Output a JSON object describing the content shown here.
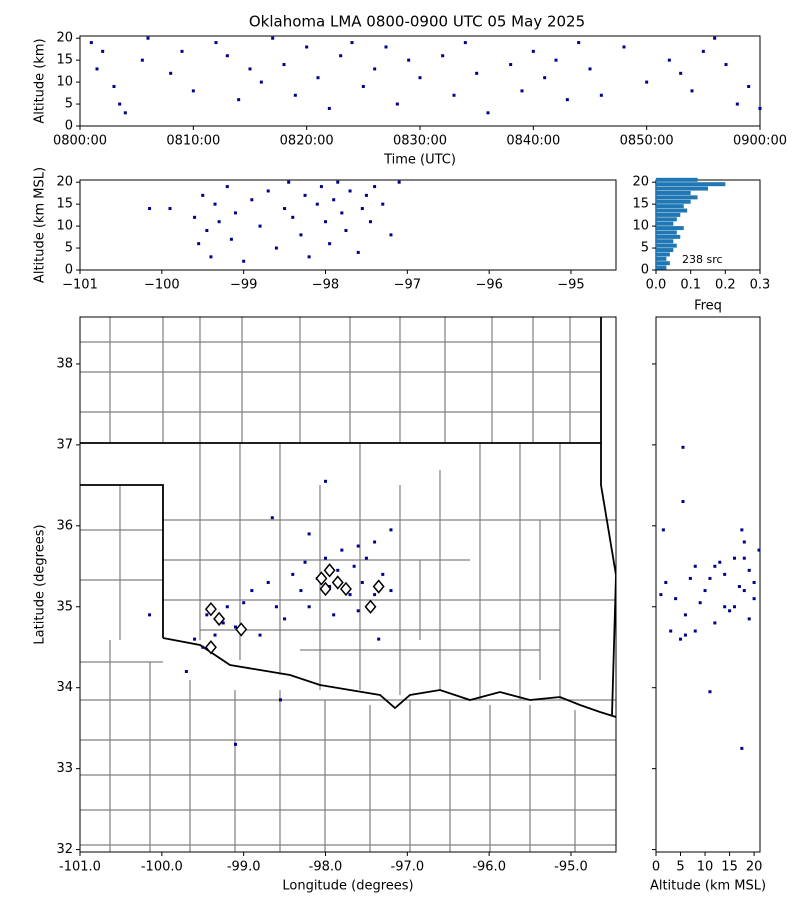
{
  "chart_data": [
    {
      "type": "scatter",
      "title": "Oklahoma LMA 0800-0900 UTC 05 May 2025",
      "xlabel": "Time (UTC)",
      "ylabel": "Altitude (km)",
      "xlim": [
        0,
        60
      ],
      "ylim": [
        0,
        20.5
      ],
      "xticks": [
        {
          "value": 0,
          "label": "0800:00"
        },
        {
          "value": 10,
          "label": "0810:00"
        },
        {
          "value": 20,
          "label": "0820:00"
        },
        {
          "value": 30,
          "label": "0830:00"
        },
        {
          "value": 40,
          "label": "0840:00"
        },
        {
          "value": 50,
          "label": "0850:00"
        },
        {
          "value": 60,
          "label": "0900:00"
        }
      ],
      "yticks": [
        0,
        5,
        10,
        15,
        20
      ],
      "series": [
        {
          "color": "#00008b",
          "marker": "square",
          "x": [
            1,
            1.5,
            2,
            3,
            3.5,
            4,
            5.5,
            6,
            8,
            9,
            10,
            12,
            13,
            14,
            15,
            16,
            17,
            18,
            19,
            20,
            21,
            22,
            23,
            24,
            25,
            26,
            27,
            28,
            29,
            30,
            32,
            33,
            34,
            35,
            36,
            38,
            39,
            40,
            41,
            42,
            43,
            44,
            45,
            46,
            48,
            50,
            52,
            53,
            54,
            55,
            56,
            57,
            58,
            59,
            60
          ],
          "values": [
            19,
            13,
            17,
            9,
            5,
            3,
            15,
            20,
            12,
            17,
            8,
            19,
            16,
            6,
            13,
            10,
            20,
            14,
            7,
            18,
            11,
            4,
            16,
            19,
            9,
            13,
            18,
            5,
            15,
            11,
            16,
            7,
            19,
            12,
            3,
            14,
            8,
            17,
            11,
            15,
            6,
            19,
            13,
            7,
            18,
            10,
            15,
            12,
            8,
            17,
            20,
            14,
            5,
            9,
            4
          ]
        }
      ]
    },
    {
      "type": "scatter",
      "ylabel": "Altitude (km MSL)",
      "xlim": [
        -101,
        -94.45
      ],
      "ylim": [
        0,
        20.5
      ],
      "xticks": [
        {
          "value": -101,
          "label": "−101"
        },
        {
          "value": -100,
          "label": "−100"
        },
        {
          "value": -99,
          "label": "−99"
        },
        {
          "value": -98,
          "label": "−98"
        },
        {
          "value": -97,
          "label": "−97"
        },
        {
          "value": -96,
          "label": "−96"
        },
        {
          "value": -95,
          "label": "−95"
        }
      ],
      "yticks": [
        0,
        5,
        10,
        15,
        20
      ],
      "series": [
        {
          "color": "#00008b",
          "marker": "square",
          "x": [
            -100.15,
            -99.9,
            -99.6,
            -99.55,
            -99.5,
            -99.45,
            -99.4,
            -99.35,
            -99.3,
            -99.2,
            -99.15,
            -99.1,
            -99.0,
            -98.9,
            -98.8,
            -98.7,
            -98.6,
            -98.5,
            -98.45,
            -98.4,
            -98.3,
            -98.25,
            -98.2,
            -98.1,
            -98.05,
            -98.0,
            -97.95,
            -97.9,
            -97.85,
            -97.8,
            -97.75,
            -97.7,
            -97.6,
            -97.55,
            -97.5,
            -97.45,
            -97.4,
            -97.3,
            -97.2,
            -97.1
          ],
          "values": [
            14,
            14,
            12,
            6,
            17,
            9,
            3,
            15,
            11,
            19,
            7,
            13,
            2,
            16,
            10,
            18,
            5,
            14,
            20,
            12,
            8,
            17,
            3,
            15,
            19,
            11,
            6,
            16,
            20,
            13,
            9,
            18,
            4,
            14,
            17,
            11,
            19,
            15,
            8,
            20
          ]
        }
      ]
    },
    {
      "type": "histogram",
      "xlabel": "Freq",
      "annotation": "238 src",
      "color": "#1f77b4",
      "xlim": [
        0,
        0.3
      ],
      "ylim": [
        0,
        20.5
      ],
      "xticks": [
        {
          "value": 0,
          "label": "0.0"
        },
        {
          "value": 0.1,
          "label": "0.1"
        },
        {
          "value": 0.2,
          "label": "0.2"
        },
        {
          "value": 0.3,
          "label": "0.3"
        }
      ],
      "yticks": [
        0,
        5,
        10,
        15,
        20
      ],
      "bins": [
        0,
        1,
        2,
        3,
        4,
        5,
        6,
        7,
        8,
        9,
        10,
        11,
        12,
        13,
        14,
        15,
        16,
        17,
        18,
        19,
        20,
        21
      ],
      "values": [
        0.03,
        0.04,
        0.03,
        0.04,
        0.05,
        0.06,
        0.05,
        0.07,
        0.06,
        0.08,
        0.05,
        0.06,
        0.07,
        0.09,
        0.08,
        0.1,
        0.12,
        0.1,
        0.15,
        0.2,
        0.12
      ]
    },
    {
      "type": "scatter",
      "xlabel": "Longitude (degrees)",
      "ylabel": "Latitude (degrees)",
      "xlim": [
        -101,
        -94.45
      ],
      "ylim": [
        31.97,
        38.58
      ],
      "xticks": [
        {
          "value": -101,
          "label": "-101.0"
        },
        {
          "value": -100,
          "label": "-100.0"
        },
        {
          "value": -99,
          "label": "-99.0"
        },
        {
          "value": -98,
          "label": "-98.0"
        },
        {
          "value": -97,
          "label": "-97.0"
        },
        {
          "value": -96,
          "label": "-96.0"
        },
        {
          "value": -95,
          "label": "-95.0"
        }
      ],
      "yticks": [
        32,
        33,
        34,
        35,
        36,
        37,
        38
      ],
      "series": [
        {
          "color": "#00008b",
          "marker": "square",
          "x": [
            -99.6,
            -99.5,
            -99.45,
            -99.35,
            -99.25,
            -99.2,
            -99.1,
            -99.0,
            -98.9,
            -98.8,
            -98.7,
            -98.6,
            -98.5,
            -98.4,
            -98.3,
            -98.25,
            -98.2,
            -98.1,
            -98.0,
            -97.95,
            -97.9,
            -97.85,
            -97.8,
            -97.7,
            -97.65,
            -97.6,
            -97.55,
            -97.5,
            -97.4,
            -97.35,
            -97.3,
            -97.2,
            -98.2,
            -97.2,
            -98.65,
            -99.7,
            -98.0,
            -97.4,
            -100.15,
            -98.55,
            -99.1,
            -97.6
          ],
          "values": [
            34.6,
            34.5,
            34.9,
            34.65,
            34.8,
            35.0,
            34.75,
            35.05,
            35.2,
            34.65,
            35.3,
            35.0,
            34.85,
            35.4,
            35.2,
            35.55,
            35.0,
            35.35,
            35.6,
            35.25,
            34.9,
            35.45,
            35.7,
            35.15,
            35.5,
            34.95,
            35.3,
            35.6,
            35.15,
            34.6,
            35.4,
            35.2,
            35.9,
            35.95,
            36.1,
            34.2,
            36.55,
            35.8,
            34.9,
            33.85,
            33.3,
            35.75
          ]
        },
        {
          "color": "#000000",
          "marker": "diamond",
          "x": [
            -99.4,
            -99.3,
            -99.03,
            -99.4,
            -97.95,
            -98.05,
            -97.85,
            -98.0,
            -97.75,
            -97.35,
            -97.45
          ],
          "values": [
            34.97,
            34.85,
            34.72,
            34.5,
            35.45,
            35.35,
            35.3,
            35.22,
            35.22,
            35.25,
            35.0
          ]
        }
      ]
    },
    {
      "type": "scatter",
      "xlabel": "Altitude (km MSL)",
      "ytick_labels": false,
      "xlim": [
        0,
        21.2
      ],
      "ylim": [
        31.97,
        38.58
      ],
      "xticks": [
        0,
        5,
        10,
        15,
        20
      ],
      "yticks": [
        32,
        33,
        34,
        35,
        36,
        37,
        38
      ],
      "series": [
        {
          "color": "#00008b",
          "marker": "square",
          "x": [
            5.5,
            5.5,
            1.5,
            17.5,
            18,
            11,
            17.5,
            2,
            4,
            6,
            8,
            10,
            12,
            14,
            16,
            18,
            20,
            3,
            7,
            9,
            13,
            15,
            17,
            19,
            21,
            1,
            5,
            11,
            14,
            16,
            19,
            20,
            8,
            12,
            18,
            6
          ],
          "values": [
            36.97,
            36.3,
            35.95,
            35.95,
            35.8,
            33.95,
            33.25,
            35.3,
            35.1,
            34.9,
            35.5,
            35.2,
            34.8,
            35.4,
            35.0,
            35.6,
            35.3,
            34.7,
            35.35,
            35.05,
            35.55,
            34.95,
            35.25,
            35.45,
            35.7,
            35.15,
            34.6,
            35.35,
            35.0,
            35.6,
            34.85,
            35.1,
            34.7,
            35.5,
            35.2,
            34.65
          ]
        }
      ]
    }
  ]
}
